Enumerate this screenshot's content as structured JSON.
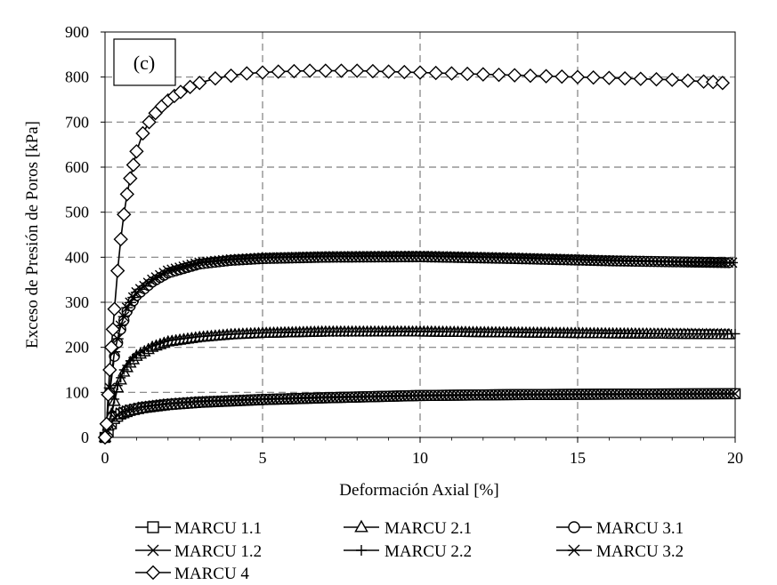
{
  "chart_data": {
    "type": "line",
    "panel_label": "(c)",
    "xlabel": "Deformación Axial [%]",
    "ylabel": "Exceso de Presión de Poros [kPa]",
    "xlim": [
      0,
      20
    ],
    "ylim": [
      0,
      900
    ],
    "xticks": [
      "0",
      "5",
      "10",
      "15",
      "20"
    ],
    "yticks": [
      "0",
      "100",
      "200",
      "300",
      "400",
      "500",
      "600",
      "700",
      "800",
      "900"
    ],
    "grid": "dashed",
    "legend_position": "bottom",
    "series": [
      {
        "name": "MARCU 1.1",
        "marker": "square",
        "x": [
          0,
          0.1,
          0.2,
          0.3,
          0.5,
          0.8,
          1.2,
          2,
          3,
          5,
          7,
          10,
          13,
          16,
          20
        ],
        "y": [
          0,
          12,
          30,
          42,
          52,
          60,
          66,
          73,
          78,
          84,
          88,
          93,
          95,
          96,
          97
        ]
      },
      {
        "name": "MARCU 2.1",
        "marker": "triangle",
        "x": [
          0,
          0.2,
          0.4,
          0.6,
          0.8,
          1,
          1.5,
          2,
          3,
          4,
          5,
          7,
          10,
          13,
          16,
          19.8
        ],
        "y": [
          0,
          50,
          110,
          145,
          165,
          180,
          200,
          212,
          222,
          228,
          231,
          234,
          234,
          232,
          230,
          228
        ]
      },
      {
        "name": "MARCU 3.1",
        "marker": "circle",
        "x": [
          0,
          0.15,
          0.3,
          0.5,
          0.7,
          1,
          1.5,
          2,
          3,
          4,
          5,
          7,
          10,
          13,
          16,
          19.8
        ],
        "y": [
          0,
          100,
          180,
          240,
          280,
          315,
          345,
          365,
          385,
          393,
          397,
          400,
          401,
          397,
          392,
          388
        ]
      },
      {
        "name": "MARCU 1.2",
        "marker": "x",
        "x": [
          0,
          0.1,
          0.2,
          0.3,
          0.5,
          0.8,
          1.2,
          2,
          3,
          5,
          7,
          10,
          13,
          16,
          20
        ],
        "y": [
          0,
          14,
          32,
          44,
          55,
          62,
          68,
          75,
          80,
          85,
          89,
          93,
          95,
          96,
          97
        ]
      },
      {
        "name": "MARCU 2.2",
        "marker": "plus",
        "x": [
          0,
          0.2,
          0.4,
          0.6,
          0.8,
          1,
          1.5,
          2,
          3,
          4,
          5,
          7,
          10,
          13,
          16,
          20
        ],
        "y": [
          0,
          55,
          115,
          150,
          170,
          184,
          203,
          215,
          224,
          229,
          232,
          234,
          235,
          233,
          231,
          230
        ]
      },
      {
        "name": "MARCU 3.2",
        "marker": "asterisk",
        "x": [
          0,
          0.15,
          0.3,
          0.5,
          0.7,
          1,
          1.5,
          2,
          3,
          4,
          5,
          7,
          10,
          13,
          16,
          19.9
        ],
        "y": [
          0,
          110,
          190,
          248,
          288,
          322,
          350,
          370,
          388,
          395,
          399,
          402,
          403,
          399,
          393,
          388
        ]
      },
      {
        "name": "MARCU 4",
        "marker": "diamond",
        "x": [
          0,
          0.05,
          0.1,
          0.15,
          0.2,
          0.25,
          0.3,
          0.4,
          0.5,
          0.6,
          0.7,
          0.8,
          0.9,
          1.0,
          1.2,
          1.4,
          1.6,
          1.8,
          2.0,
          2.2,
          2.4,
          2.7,
          3.0,
          3.5,
          4.0,
          4.5,
          5.0,
          5.5,
          6.0,
          6.5,
          7.0,
          7.5,
          8.0,
          8.5,
          9.0,
          9.5,
          10.0,
          10.5,
          11.0,
          11.5,
          12.0,
          12.5,
          13.0,
          13.5,
          14.0,
          14.5,
          15.0,
          15.5,
          16.0,
          16.5,
          17.0,
          17.5,
          18.0,
          18.5,
          19.0,
          19.3,
          19.6
        ],
        "y": [
          0,
          30,
          95,
          150,
          200,
          240,
          285,
          370,
          440,
          495,
          540,
          575,
          605,
          635,
          675,
          700,
          720,
          735,
          748,
          758,
          767,
          778,
          787,
          797,
          803,
          808,
          810,
          812,
          813,
          814,
          814,
          814,
          814,
          813,
          812,
          811,
          810,
          809,
          808,
          807,
          806,
          805,
          804,
          803,
          802,
          801,
          800,
          799,
          798,
          797,
          796,
          795,
          794,
          792,
          790,
          789,
          787
        ]
      }
    ]
  }
}
